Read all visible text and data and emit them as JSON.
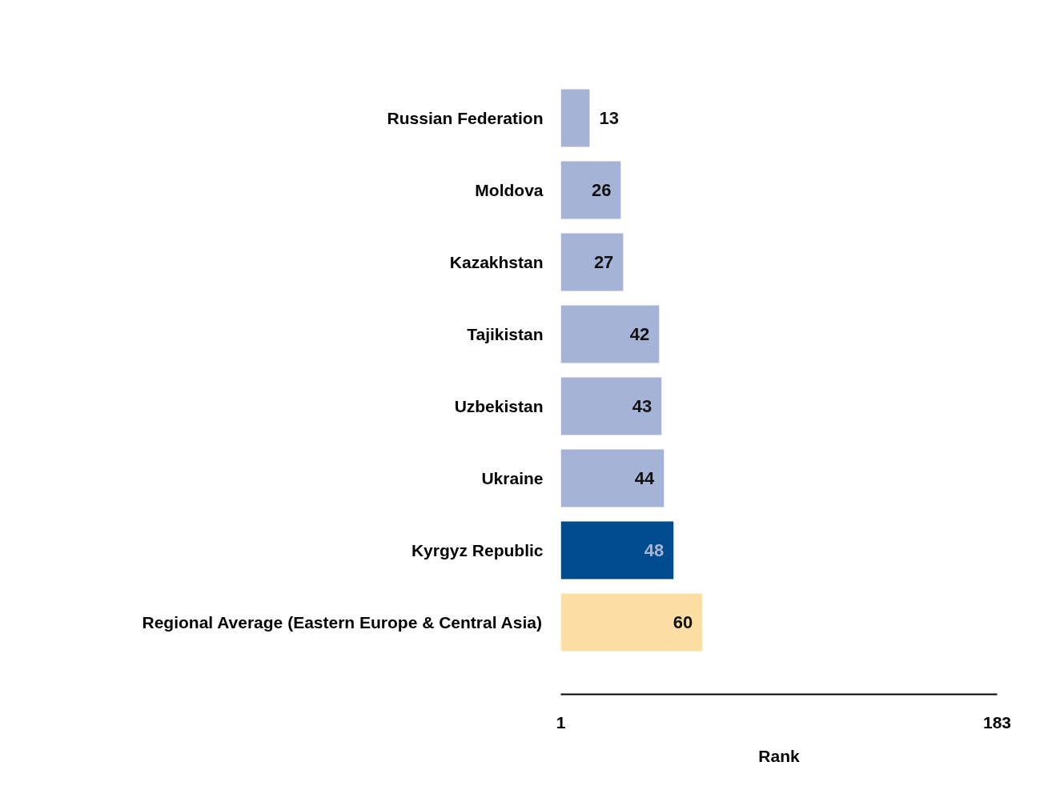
{
  "chart_data": {
    "type": "bar",
    "orientation": "horizontal",
    "xlabel": "Rank",
    "categories": [
      "Russian Federation",
      "Moldova",
      "Kazakhstan",
      "Tajikistan",
      "Uzbekistan",
      "Ukraine",
      "Kyrgyz Republic",
      "Regional Average (Eastern Europe & Central Asia)"
    ],
    "values": [
      13,
      26,
      27,
      42,
      43,
      44,
      48,
      60
    ],
    "colors": [
      "#a5b3d6",
      "#a5b3d6",
      "#a5b3d6",
      "#a5b3d6",
      "#a5b3d6",
      "#a5b3d6",
      "#004b8d",
      "#fddfa6"
    ],
    "xlim": [
      1,
      183
    ],
    "xticks": [
      1,
      183
    ],
    "data_labels": true,
    "grid": false
  }
}
